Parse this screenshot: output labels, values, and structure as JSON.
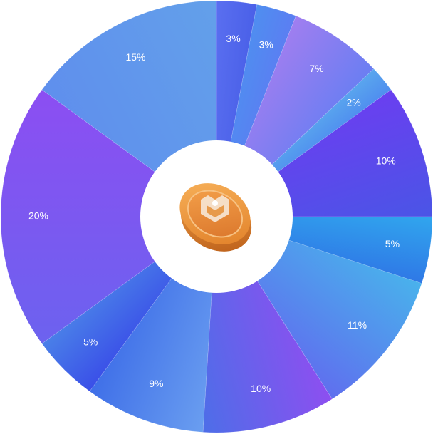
{
  "wheel": {
    "center_icon": "coin-icon",
    "segments": [
      {
        "label": "3%",
        "value": 3,
        "color_start": "#5a6ff0",
        "color_end": "#4a60e8"
      },
      {
        "label": "3%",
        "value": 3,
        "color_start": "#4f8ef0",
        "color_end": "#5b7ef2"
      },
      {
        "label": "7%",
        "value": 7,
        "color_start": "#a07ef0",
        "color_end": "#6a7ef2"
      },
      {
        "label": "2%",
        "value": 2,
        "color_start": "#5aa6ee",
        "color_end": "#4f8eef"
      },
      {
        "label": "10%",
        "value": 10,
        "color_start": "#6a3ff0",
        "color_end": "#4a55e6"
      },
      {
        "label": "5%",
        "value": 5,
        "color_start": "#30a6ee",
        "color_end": "#2f78e6"
      },
      {
        "label": "11%",
        "value": 11,
        "color_start": "#49b2ec",
        "color_end": "#5f6fee"
      },
      {
        "label": "10%",
        "value": 10,
        "color_start": "#8d4ff0",
        "color_end": "#4d6ee8"
      },
      {
        "label": "9%",
        "value": 9,
        "color_start": "#6a9ef0",
        "color_end": "#3f6fe8"
      },
      {
        "label": "5%",
        "value": 5,
        "color_start": "#3a4fe8",
        "color_end": "#4a80e8"
      },
      {
        "label": "20%",
        "value": 20,
        "color_start": "#6c62ef",
        "color_end": "#8c4ef2"
      },
      {
        "label": "15%",
        "value": 15,
        "color_start": "#5f8fed",
        "color_end": "#63a0ea"
      }
    ]
  }
}
